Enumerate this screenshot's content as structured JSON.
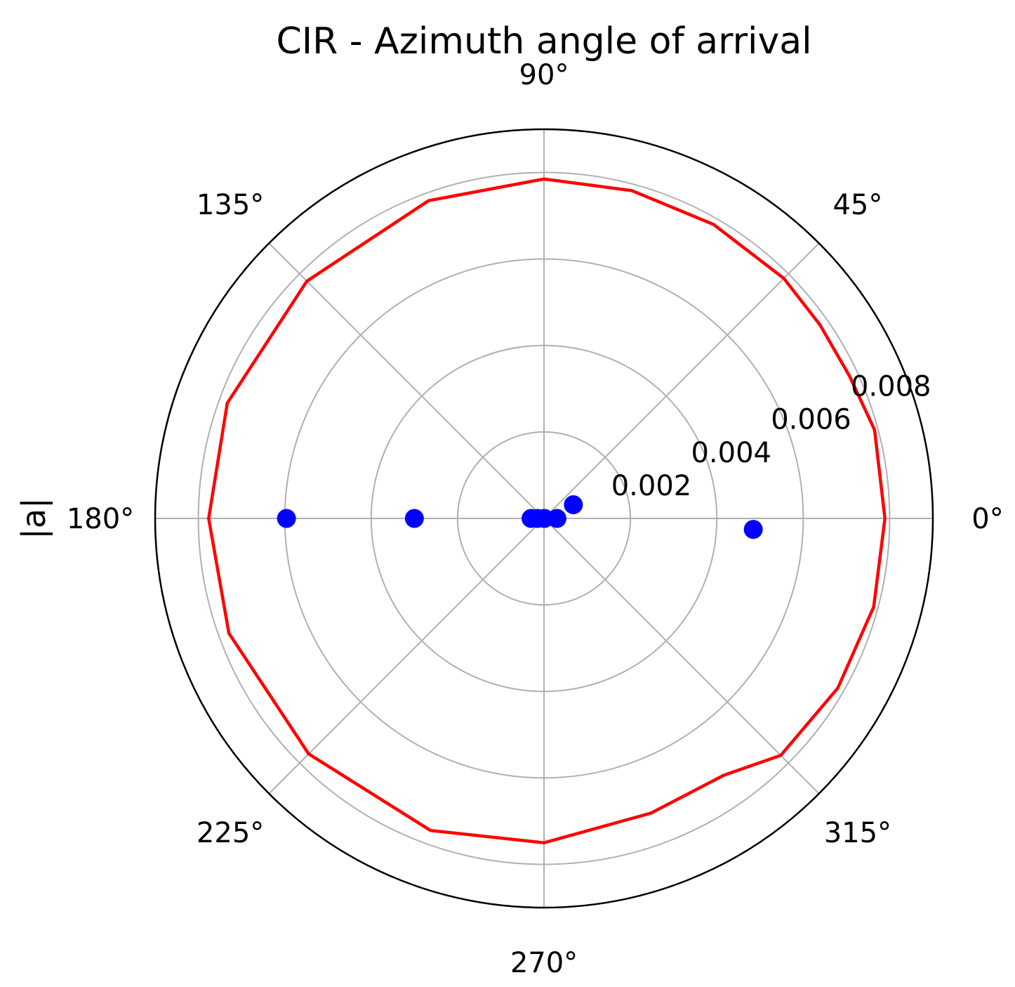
{
  "chart_data": {
    "type": "scatter",
    "projection": "polar",
    "title": "CIR - Azimuth angle of arrival",
    "ylabel": "|a|",
    "angle_ticks_deg": [
      0,
      45,
      90,
      135,
      180,
      225,
      270,
      315
    ],
    "angle_tick_labels": [
      "0°",
      "45°",
      "90°",
      "135°",
      "180°",
      "225°",
      "270°",
      "315°"
    ],
    "radial_ticks": [
      0.002,
      0.004,
      0.006,
      0.008
    ],
    "radial_tick_labels": [
      "0.002",
      "0.004",
      "0.006",
      "0.008"
    ],
    "radial_label_angle_deg": 22.5,
    "rlim": [
      0,
      0.009
    ],
    "grid": true,
    "colors": {
      "points": "#0000ff",
      "curve": "#ff0000",
      "grid": "#b0b0b0",
      "spine": "#000000"
    },
    "points": [
      {
        "angle_deg": 0.0,
        "r": 1e-05
      },
      {
        "angle_deg": 180.0,
        "r": 0.00015
      },
      {
        "angle_deg": 0.0,
        "r": 0.0003
      },
      {
        "angle_deg": 180.0,
        "r": 0.0003
      },
      {
        "angle_deg": 25.0,
        "r": 0.00075
      },
      {
        "angle_deg": 357.0,
        "r": 0.00485
      },
      {
        "angle_deg": 180.0,
        "r": 0.003
      },
      {
        "angle_deg": 180.0,
        "r": 0.00596
      }
    ],
    "curve": [
      {
        "angle_deg": 0,
        "r": 0.00789
      },
      {
        "angle_deg": 15,
        "r": 0.00792
      },
      {
        "angle_deg": 25,
        "r": 0.0078
      },
      {
        "angle_deg": 35,
        "r": 0.0078
      },
      {
        "angle_deg": 45,
        "r": 0.00785
      },
      {
        "angle_deg": 60,
        "r": 0.00785
      },
      {
        "angle_deg": 75,
        "r": 0.00785
      },
      {
        "angle_deg": 90,
        "r": 0.00785
      },
      {
        "angle_deg": 110,
        "r": 0.00782
      },
      {
        "angle_deg": 135,
        "r": 0.00776
      },
      {
        "angle_deg": 160,
        "r": 0.0078
      },
      {
        "angle_deg": 180,
        "r": 0.00776
      },
      {
        "angle_deg": 200,
        "r": 0.00776
      },
      {
        "angle_deg": 225,
        "r": 0.0077
      },
      {
        "angle_deg": 250,
        "r": 0.00768
      },
      {
        "angle_deg": 270,
        "r": 0.0075
      },
      {
        "angle_deg": 290,
        "r": 0.00725
      },
      {
        "angle_deg": 305,
        "r": 0.00725
      },
      {
        "angle_deg": 315,
        "r": 0.00775
      },
      {
        "angle_deg": 330,
        "r": 0.00785
      },
      {
        "angle_deg": 345,
        "r": 0.0079
      },
      {
        "angle_deg": 360,
        "r": 0.00789
      }
    ]
  }
}
